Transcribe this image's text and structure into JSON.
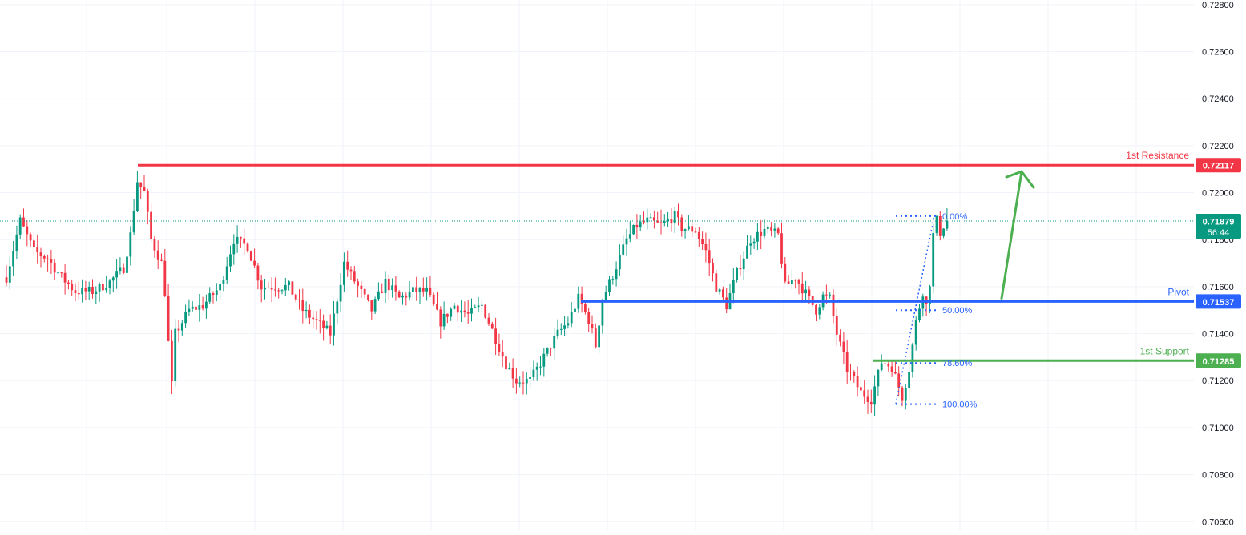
{
  "chart_data": {
    "type": "candlestick",
    "title": "",
    "xlabel": "",
    "ylabel": "",
    "ylim": [
      0.7056,
      0.7282
    ],
    "y_ticks": [
      "0.72800",
      "0.72600",
      "0.72400",
      "0.72200",
      "0.72000",
      "0.71800",
      "0.71600",
      "0.71400",
      "0.71200",
      "0.71000",
      "0.70800",
      "0.70600"
    ],
    "y_tick_values": [
      0.728,
      0.726,
      0.724,
      0.722,
      0.72,
      0.718,
      0.716,
      0.714,
      0.712,
      0.71,
      0.708,
      0.706
    ],
    "grid": true,
    "colors": {
      "up": "#089981",
      "down": "#f23645",
      "grid": "#f0f3fa",
      "axis_text": "#131722"
    },
    "current_price": {
      "value": 0.71879,
      "label": "0.71879",
      "countdown": "56:44",
      "color": "#089981"
    },
    "levels": [
      {
        "name": "1st Resistance",
        "value": 0.72117,
        "label": "0.72117",
        "color": "#f23645"
      },
      {
        "name": "Pivot",
        "value": 0.71537,
        "label": "0.71537",
        "color": "#2962ff"
      },
      {
        "name": "1st Support",
        "value": 0.71285,
        "label": "0.71285",
        "color": "#4caf50"
      }
    ],
    "fibonacci": {
      "color": "#2962ff",
      "levels": [
        {
          "label": "0.00%",
          "value": 0.719
        },
        {
          "label": "50.00%",
          "value": 0.715
        },
        {
          "label": "78.60%",
          "value": 0.71275
        },
        {
          "label": "100.00%",
          "value": 0.711
        }
      ]
    },
    "projection_arrow": {
      "from": 0.7155,
      "to": 0.7209,
      "color": "#4caf50"
    },
    "anchors": [
      [
        0,
        0.7164
      ],
      [
        4,
        0.7188
      ],
      [
        8,
        0.7175
      ],
      [
        12,
        0.7172
      ],
      [
        16,
        0.7164
      ],
      [
        20,
        0.7158
      ],
      [
        25,
        0.7158
      ],
      [
        30,
        0.7162
      ],
      [
        34,
        0.7168
      ],
      [
        36,
        0.7182
      ],
      [
        38,
        0.7205
      ],
      [
        40,
        0.72
      ],
      [
        42,
        0.718
      ],
      [
        45,
        0.717
      ],
      [
        46,
        0.7158
      ],
      [
        47,
        0.7136
      ],
      [
        48,
        0.7118
      ],
      [
        49,
        0.714
      ],
      [
        53,
        0.715
      ],
      [
        57,
        0.7152
      ],
      [
        62,
        0.716
      ],
      [
        66,
        0.718
      ],
      [
        70,
        0.7177
      ],
      [
        74,
        0.716
      ],
      [
        78,
        0.716
      ],
      [
        82,
        0.716
      ],
      [
        86,
        0.715
      ],
      [
        90,
        0.7145
      ],
      [
        94,
        0.714
      ],
      [
        98,
        0.717
      ],
      [
        102,
        0.716
      ],
      [
        106,
        0.715
      ],
      [
        110,
        0.7162
      ],
      [
        114,
        0.7155
      ],
      [
        118,
        0.7158
      ],
      [
        122,
        0.7158
      ],
      [
        126,
        0.7145
      ],
      [
        130,
        0.7152
      ],
      [
        134,
        0.7148
      ],
      [
        138,
        0.7152
      ],
      [
        142,
        0.7138
      ],
      [
        145,
        0.7127
      ],
      [
        148,
        0.712
      ],
      [
        152,
        0.712
      ],
      [
        156,
        0.713
      ],
      [
        160,
        0.714
      ],
      [
        163,
        0.7145
      ],
      [
        166,
        0.7155
      ],
      [
        169,
        0.7146
      ],
      [
        171,
        0.7135
      ],
      [
        173,
        0.7155
      ],
      [
        176,
        0.7165
      ],
      [
        180,
        0.718
      ],
      [
        183,
        0.7186
      ],
      [
        186,
        0.7188
      ],
      [
        190,
        0.7186
      ],
      [
        194,
        0.719
      ],
      [
        196,
        0.7185
      ],
      [
        200,
        0.7184
      ],
      [
        203,
        0.7175
      ],
      [
        206,
        0.716
      ],
      [
        209,
        0.7152
      ],
      [
        212,
        0.7166
      ],
      [
        216,
        0.718
      ],
      [
        220,
        0.7184
      ],
      [
        224,
        0.7182
      ],
      [
        226,
        0.716
      ],
      [
        229,
        0.7164
      ],
      [
        232,
        0.7157
      ],
      [
        235,
        0.715
      ],
      [
        237,
        0.7156
      ],
      [
        239,
        0.7155
      ],
      [
        241,
        0.714
      ],
      [
        244,
        0.7125
      ],
      [
        248,
        0.7115
      ],
      [
        251,
        0.7112
      ],
      [
        254,
        0.7128
      ],
      [
        257,
        0.7126
      ],
      [
        260,
        0.7113
      ],
      [
        262,
        0.7125
      ],
      [
        264,
        0.7145
      ],
      [
        266,
        0.7158
      ],
      [
        267,
        0.7152
      ],
      [
        268,
        0.7162
      ],
      [
        269,
        0.7182
      ],
      [
        270,
        0.7188
      ],
      [
        271,
        0.7183
      ],
      [
        272,
        0.7186
      ],
      [
        273,
        0.7188
      ]
    ]
  }
}
